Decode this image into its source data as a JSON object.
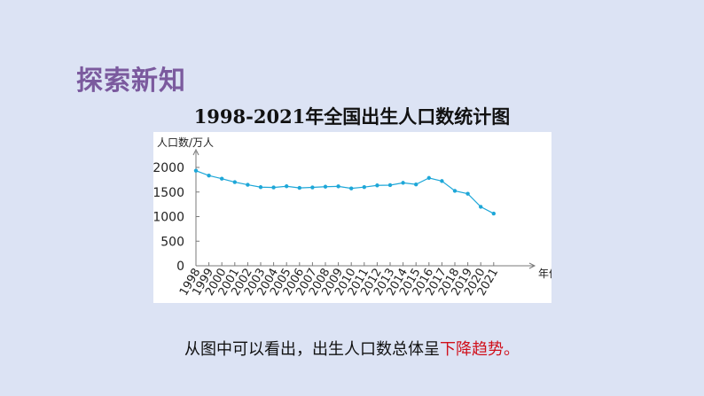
{
  "header": {
    "section_title": "探索新知"
  },
  "conclusion": {
    "prefix": "从图中可以看出，出生人口数总体呈",
    "highlight": "下降趋势。"
  },
  "colors": {
    "line": "#1ea7d8",
    "axis": "#7a7a7a",
    "highlight": "#d0101b",
    "section_title": "#7b5a9e"
  },
  "chart_data": {
    "type": "line",
    "title": "1998-2021年全国出生人口数统计图",
    "ylabel": "人口数/万人",
    "xlabel": "年份",
    "ylim": [
      0,
      2000
    ],
    "yticks": [
      0,
      500,
      1000,
      1500,
      2000
    ],
    "categories": [
      "1998",
      "1999",
      "2000",
      "2001",
      "2002",
      "2003",
      "2004",
      "2005",
      "2006",
      "2007",
      "2008",
      "2009",
      "2010",
      "2011",
      "2012",
      "2013",
      "2014",
      "2015",
      "2016",
      "2017",
      "2018",
      "2019",
      "2020",
      "2021"
    ],
    "values": [
      1934,
      1834,
      1771,
      1702,
      1647,
      1599,
      1593,
      1617,
      1584,
      1594,
      1608,
      1615,
      1574,
      1600,
      1635,
      1640,
      1687,
      1655,
      1786,
      1723,
      1523,
      1465,
      1200,
      1062
    ],
    "grid": false
  }
}
